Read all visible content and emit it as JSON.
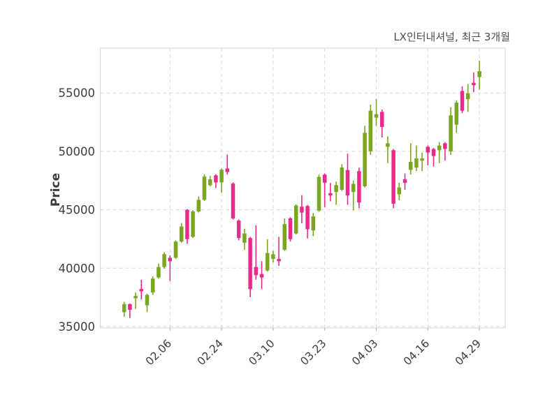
{
  "title": "LX인터내셔널, 최근 3개월",
  "y_axis": {
    "label": "Price"
  },
  "colors": {
    "up": "#7aa621",
    "down": "#e92a8b",
    "grid": "#d9d9d9",
    "border": "#d4d4d4",
    "axis_text": "#3d3d3d",
    "title_text": "#4d4d4d",
    "background": "#ffffff"
  },
  "chart_data": {
    "type": "candlestick",
    "title": "LX인터내셔널, 최근 3개월",
    "ylabel": "Price",
    "ylim": [
      34800,
      58840
    ],
    "grid": true,
    "y_ticks": [
      35000,
      40000,
      45000,
      50000,
      55000
    ],
    "x_tick_labels": [
      "02.06",
      "02.24",
      "03.10",
      "03.23",
      "04.03",
      "04.16",
      "04.29"
    ],
    "x_tick_indices": [
      8,
      17,
      26,
      35,
      44,
      53,
      62
    ],
    "candles_format": [
      "open",
      "high",
      "low",
      "close"
    ],
    "candles": [
      [
        36230,
        37120,
        35830,
        36920
      ],
      [
        36920,
        36970,
        35730,
        36430
      ],
      [
        37420,
        37920,
        36520,
        37620
      ],
      [
        38210,
        39010,
        37320,
        38020
      ],
      [
        36820,
        37810,
        36230,
        37710
      ],
      [
        37920,
        39300,
        37710,
        39110
      ],
      [
        39200,
        40390,
        39100,
        40100
      ],
      [
        40100,
        41350,
        39950,
        41200
      ],
      [
        40890,
        41090,
        38910,
        40590
      ],
      [
        40890,
        42380,
        40790,
        42280
      ],
      [
        42280,
        43870,
        42180,
        43570
      ],
      [
        45000,
        45060,
        42080,
        42480
      ],
      [
        42680,
        44960,
        42580,
        44860
      ],
      [
        44860,
        46150,
        44760,
        45850
      ],
      [
        45850,
        48030,
        45750,
        47840
      ],
      [
        47100,
        47900,
        47000,
        47600
      ],
      [
        47940,
        48040,
        46850,
        47340
      ],
      [
        47340,
        48530,
        46450,
        48430
      ],
      [
        48530,
        49720,
        48030,
        48230
      ],
      [
        47240,
        47340,
        44170,
        44260
      ],
      [
        44070,
        44170,
        42380,
        42580
      ],
      [
        42180,
        43370,
        41580,
        42970
      ],
      [
        42580,
        42680,
        37520,
        38210
      ],
      [
        40100,
        43670,
        39010,
        39400
      ],
      [
        39500,
        40590,
        38210,
        39200
      ],
      [
        39800,
        42480,
        39700,
        41290
      ],
      [
        40790,
        41490,
        40490,
        41190
      ],
      [
        40790,
        42680,
        40190,
        40590
      ],
      [
        41580,
        44260,
        41480,
        43770
      ],
      [
        44260,
        44360,
        42280,
        42480
      ],
      [
        42970,
        45460,
        42870,
        45360
      ],
      [
        45260,
        46250,
        43830,
        44760
      ],
      [
        45320,
        45420,
        42540,
        43330
      ],
      [
        43230,
        44730,
        42740,
        44430
      ],
      [
        44920,
        48010,
        44820,
        47810
      ],
      [
        48010,
        48110,
        45220,
        47310
      ],
      [
        46420,
        47310,
        45720,
        46220
      ],
      [
        46520,
        47410,
        45420,
        47110
      ],
      [
        46710,
        48900,
        46610,
        48610
      ],
      [
        48400,
        49800,
        45420,
        46220
      ],
      [
        46520,
        47510,
        44950,
        47210
      ],
      [
        48310,
        48610,
        45120,
        45620
      ],
      [
        47010,
        52190,
        46910,
        51590
      ],
      [
        50000,
        54000,
        49700,
        53480
      ],
      [
        52880,
        54470,
        52190,
        53180
      ],
      [
        53380,
        53580,
        51190,
        52090
      ],
      [
        50390,
        51290,
        49000,
        50690
      ],
      [
        50100,
        50200,
        45120,
        45520
      ],
      [
        46320,
        47310,
        45820,
        46910
      ],
      [
        47610,
        48110,
        46710,
        47310
      ],
      [
        48410,
        50700,
        48010,
        49100
      ],
      [
        48610,
        50500,
        48310,
        49400
      ],
      [
        49200,
        49900,
        48310,
        49400
      ],
      [
        50390,
        50490,
        48800,
        49900
      ],
      [
        50200,
        50290,
        48700,
        49600
      ],
      [
        50100,
        50790,
        49000,
        50490
      ],
      [
        50690,
        50790,
        49200,
        50200
      ],
      [
        50000,
        53780,
        49700,
        53080
      ],
      [
        52290,
        54370,
        51590,
        54170
      ],
      [
        55170,
        55570,
        53280,
        53480
      ],
      [
        54470,
        55770,
        53380,
        54970
      ],
      [
        55860,
        56760,
        55070,
        55660
      ],
      [
        56360,
        57750,
        55270,
        56860
      ]
    ]
  }
}
